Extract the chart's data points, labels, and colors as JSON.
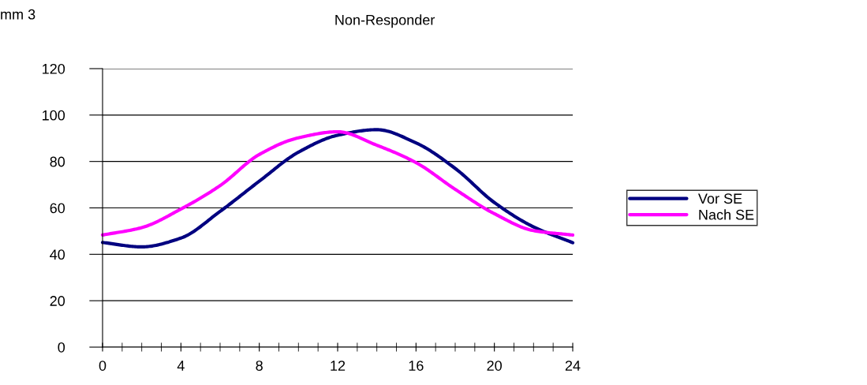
{
  "chart_data": {
    "type": "line",
    "title": "Non-Responder",
    "ylabel": "mm 3",
    "x": [
      0,
      2,
      4,
      6,
      8,
      10,
      12,
      14,
      16,
      18,
      20,
      22,
      24
    ],
    "series": [
      {
        "name": "Vor SE",
        "color": "#000080",
        "values": [
          45.1,
          43.2,
          47,
          58.5,
          71.5,
          84,
          91.3,
          93.7,
          88,
          77,
          62.3,
          51.8,
          45
        ]
      },
      {
        "name": "Nach SE",
        "color": "#ff00ff",
        "values": [
          48.3,
          51.5,
          59.5,
          69.6,
          83,
          90.2,
          92.8,
          87,
          79.5,
          68,
          57.5,
          50.2,
          48.3
        ]
      }
    ],
    "xlim": [
      0,
      24
    ],
    "xticks": [
      0,
      4,
      8,
      12,
      16,
      20,
      24
    ],
    "ylim": [
      0,
      120
    ],
    "yticks": [
      0,
      20,
      40,
      60,
      80,
      100,
      120
    ],
    "grid": "y",
    "legend": "right",
    "marker": "none",
    "line_style": "solid"
  }
}
